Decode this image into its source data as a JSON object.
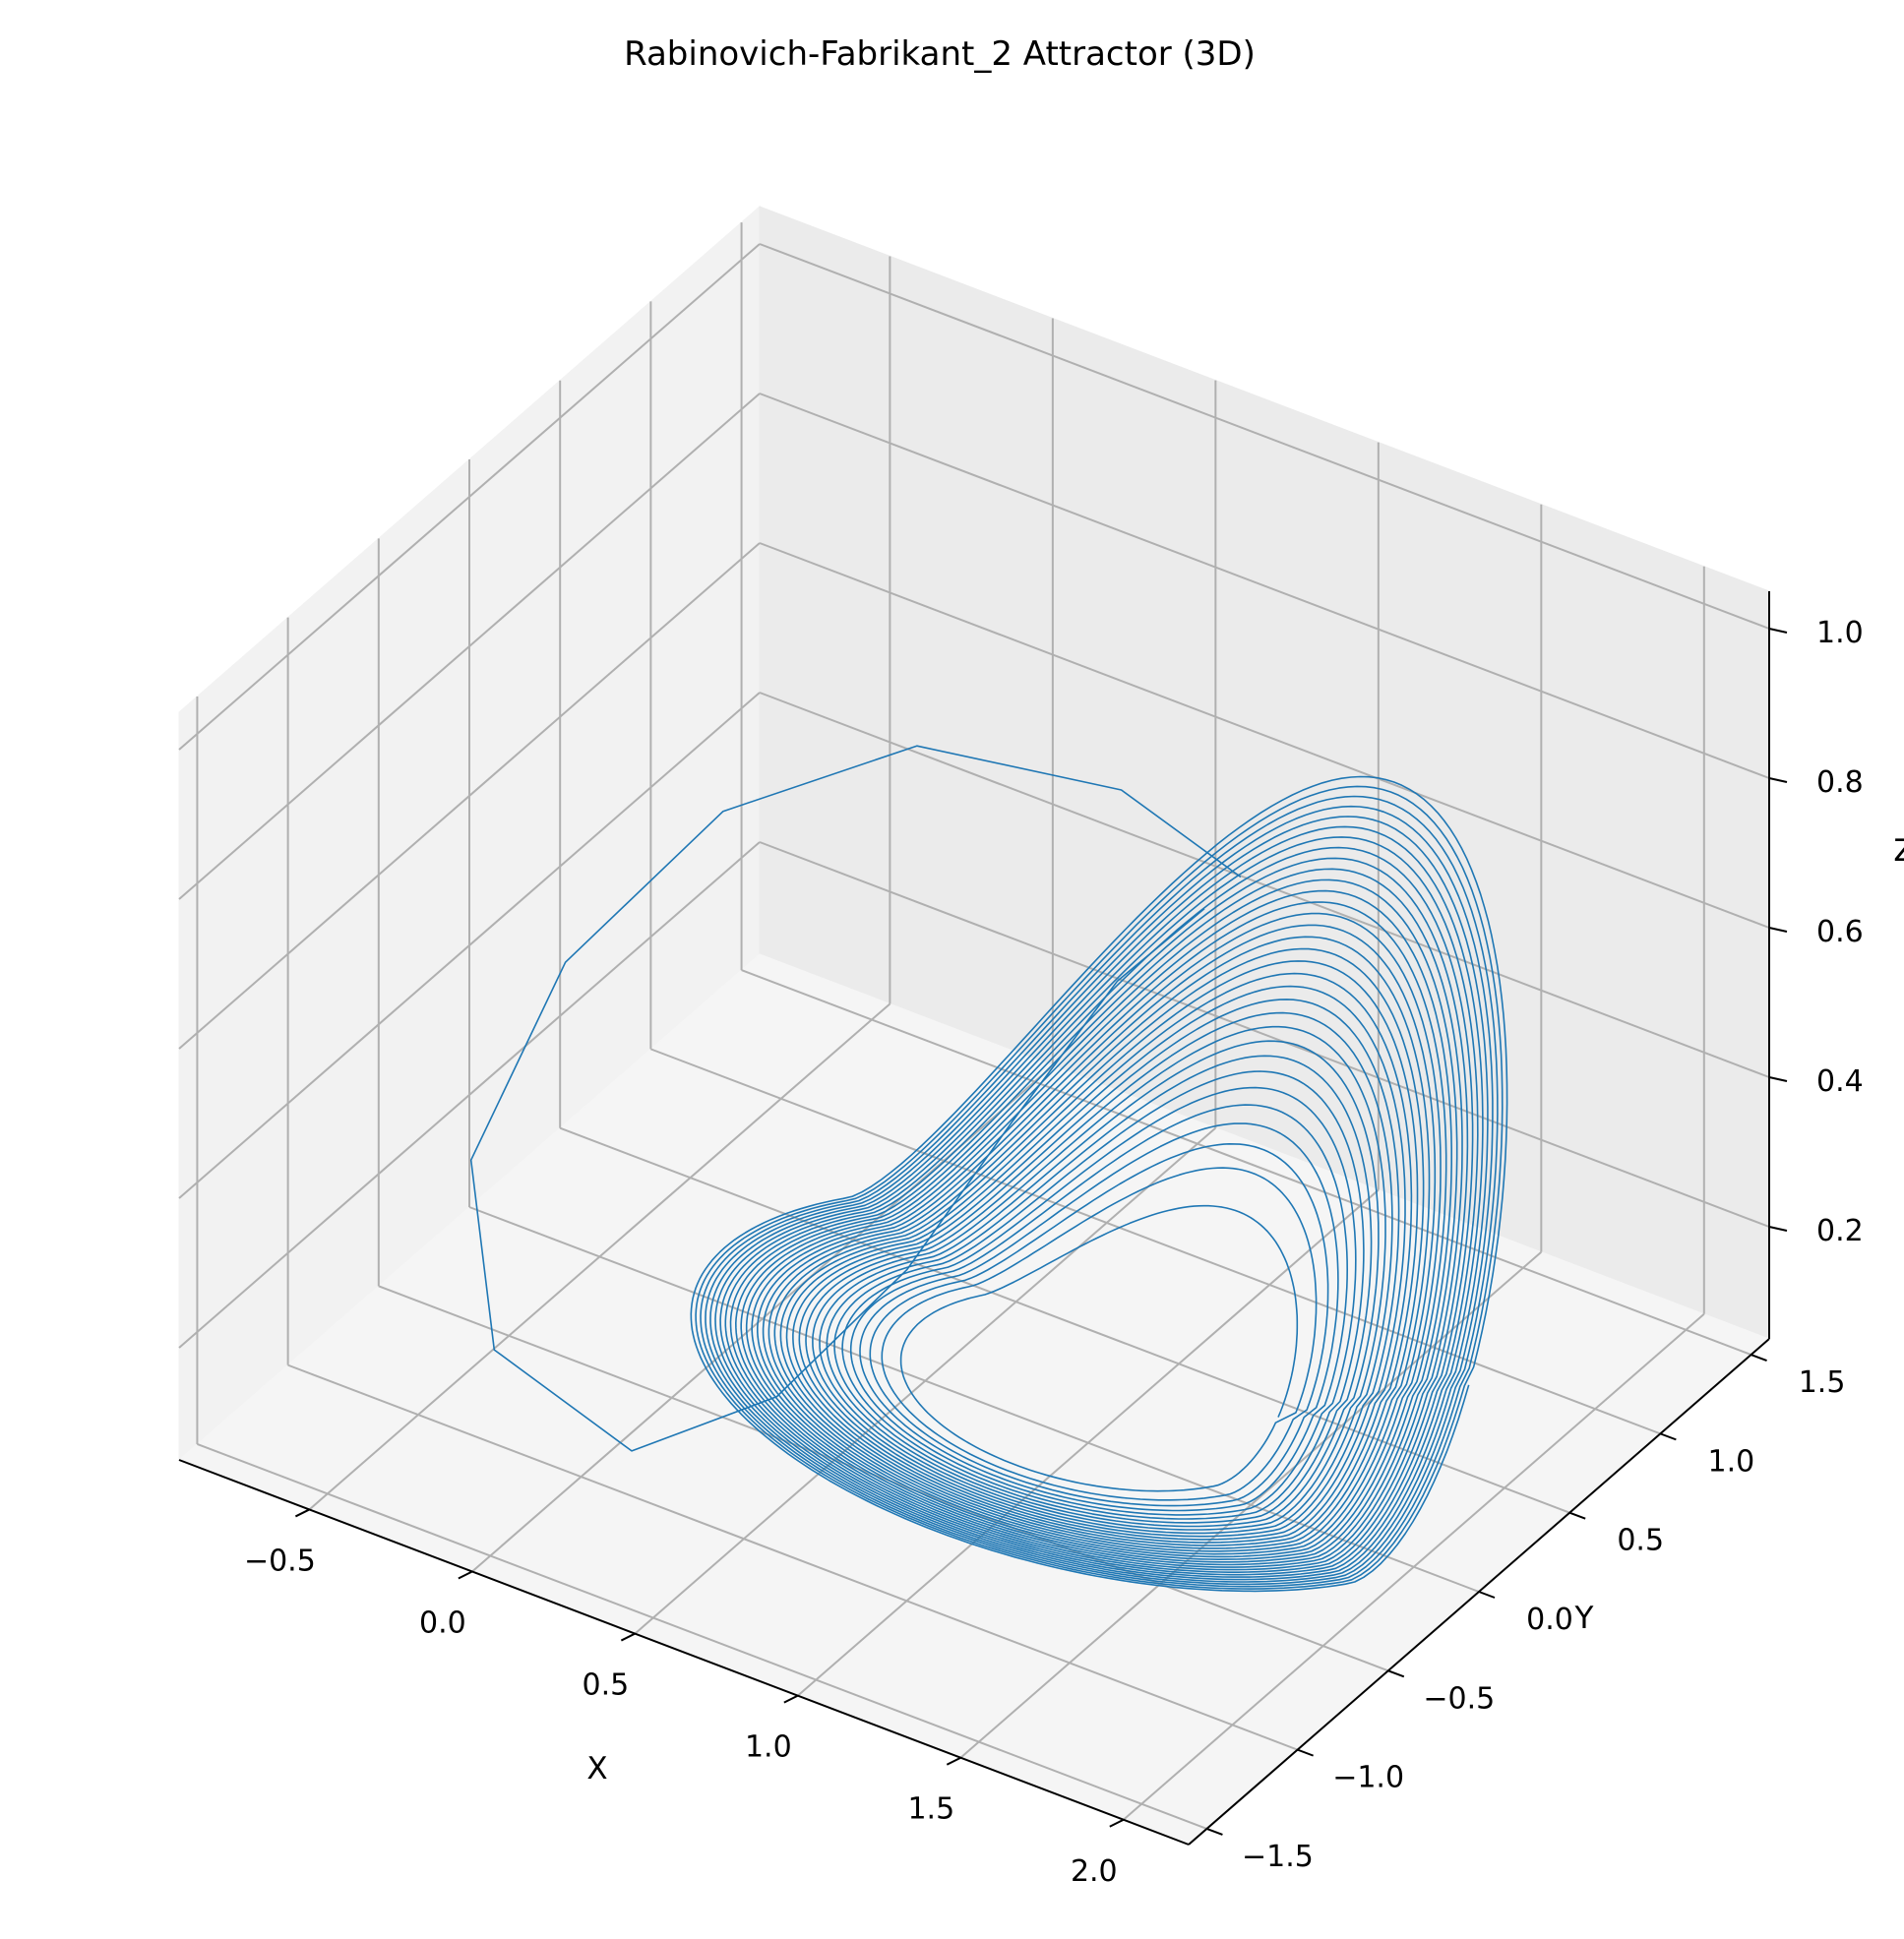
{
  "chart_data": {
    "type": "line",
    "projection": "3d",
    "title": "Rabinovich-Fabrikant_2 Attractor (3D)",
    "xlabel": "X",
    "ylabel": "Y",
    "zlabel": "Z",
    "xlim": [
      -0.9,
      2.2
    ],
    "ylim": [
      -1.6,
      1.6
    ],
    "zlim": [
      0.05,
      1.05
    ],
    "xticks": [
      "−0.5",
      "0.0",
      "0.5",
      "1.0",
      "1.5",
      "2.0"
    ],
    "yticks": [
      "−1.5",
      "−1.0",
      "−0.5",
      "0.0",
      "0.5",
      "1.0",
      "1.5"
    ],
    "zticks": [
      "0.2",
      "0.4",
      "0.6",
      "0.8",
      "1.0"
    ],
    "grid": true,
    "series": [
      {
        "description": "trajectory approaching a spiral limit cycle",
        "color": "#1f77b4",
        "initial_transient": {
          "x": [
            0.8,
            0.35,
            -0.25,
            -0.65,
            -0.8,
            -0.7,
            -0.35,
            0.1,
            0.35,
            0.5,
            0.6,
            0.7,
            0.8
          ],
          "y": [
            1.2,
            1.35,
            1.3,
            0.95,
            0.35,
            -0.35,
            -0.85,
            -0.9,
            -0.55,
            -0.1,
            0.3,
            0.7,
            1.0
          ],
          "z": [
            0.52,
            0.53,
            0.5,
            0.42,
            0.32,
            0.22,
            0.13,
            0.08,
            0.12,
            0.22,
            0.35,
            0.47,
            0.52
          ]
        },
        "limit_cycle": {
          "center_x": 0.95,
          "center_y": 0.15,
          "amplitude_x_range": [
            0.55,
            1.15
          ],
          "amplitude_y_range": [
            0.55,
            1.05
          ],
          "z_min": 0.08,
          "z_peak_range": [
            0.26,
            0.8
          ],
          "loops": 32
        }
      }
    ]
  }
}
